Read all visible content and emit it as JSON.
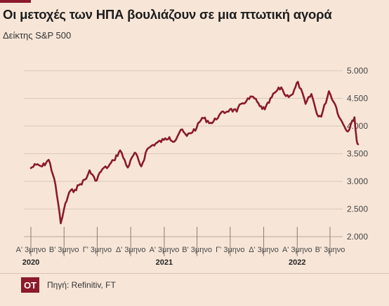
{
  "title": "Οι μετοχές των ΗΠΑ βουλιάζουν σε μια πτωτική αγορά",
  "subtitle": "Δείκτης S&P 500",
  "source": "Πηγή: Refinitiv, FT",
  "logo": "OT",
  "colors": {
    "line": "#8b1a2b",
    "background": "#f7e6d8",
    "grid": "#d9c8ba",
    "text": "#444444"
  },
  "chart_data": {
    "type": "line",
    "title": "Οι μετοχές των ΗΠΑ βουλιάζουν σε μια πτωτική αγορά",
    "ylabel": "Δείκτης S&P 500",
    "ylim": [
      2000,
      5000
    ],
    "yticks": [
      2000,
      2500,
      3000,
      3500,
      4000,
      4500,
      5000
    ],
    "ytick_labels": [
      "2.000",
      "2.500",
      "3.000",
      "3.500",
      "4.000",
      "4.500",
      "5.000"
    ],
    "x_ticks": [
      "2020-01",
      "2020-04",
      "2020-07",
      "2020-10",
      "2021-01",
      "2021-04",
      "2021-07",
      "2021-10",
      "2022-01",
      "2022-04"
    ],
    "x_tick_labels": [
      "Α' 3μηνο",
      "Β' 3μηνο",
      "Γ' 3μηνο",
      "Δ' 3μηνο",
      "Α' 3μηνο",
      "Β' 3μηνο",
      "Γ' 3μηνο",
      "Δ' 3μηνο",
      "Α' 3μηνο",
      "Β' 3μηνο"
    ],
    "year_labels": [
      {
        "x": "2020-01",
        "label": "2020"
      },
      {
        "x": "2021-01",
        "label": "2021"
      },
      {
        "x": "2022-01",
        "label": "2022"
      }
    ],
    "grid": "horizontal",
    "series": [
      {
        "x": [
          "2020-01-01",
          "2020-01-15",
          "2020-02-01",
          "2020-02-19",
          "2020-03-05",
          "2020-03-16",
          "2020-03-23",
          "2020-04-01",
          "2020-04-15",
          "2020-05-01",
          "2020-05-15",
          "2020-06-01",
          "2020-06-10",
          "2020-06-26",
          "2020-07-15",
          "2020-08-01",
          "2020-08-15",
          "2020-09-02",
          "2020-09-23",
          "2020-10-12",
          "2020-10-30",
          "2020-11-15",
          "2020-12-01",
          "2020-12-31",
          "2021-01-15",
          "2021-01-29",
          "2021-02-15",
          "2021-03-04",
          "2021-03-31",
          "2021-04-15",
          "2021-05-12",
          "2021-06-01",
          "2021-06-30",
          "2021-07-19",
          "2021-07-31",
          "2021-08-15",
          "2021-09-02",
          "2021-09-20",
          "2021-10-04",
          "2021-10-31",
          "2021-11-18",
          "2021-12-01",
          "2021-12-20",
          "2022-01-03",
          "2022-01-24",
          "2022-02-09",
          "2022-02-24",
          "2022-03-08",
          "2022-03-29",
          "2022-04-15",
          "2022-04-29",
          "2022-05-10",
          "2022-05-20",
          "2022-06-01",
          "2022-06-07",
          "2022-06-13",
          "2022-06-17"
        ],
        "values": [
          3240,
          3300,
          3270,
          3390,
          3050,
          2600,
          2240,
          2500,
          2800,
          2850,
          2950,
          3050,
          3200,
          3010,
          3220,
          3270,
          3380,
          3560,
          3250,
          3520,
          3270,
          3580,
          3660,
          3750,
          3800,
          3720,
          3930,
          3820,
          3970,
          4150,
          4050,
          4200,
          4300,
          4260,
          4400,
          4460,
          4530,
          4360,
          4300,
          4600,
          4700,
          4540,
          4580,
          4800,
          4400,
          4580,
          4220,
          4170,
          4630,
          4390,
          4130,
          4000,
          3900,
          4100,
          4160,
          3750,
          3670
        ]
      }
    ]
  }
}
